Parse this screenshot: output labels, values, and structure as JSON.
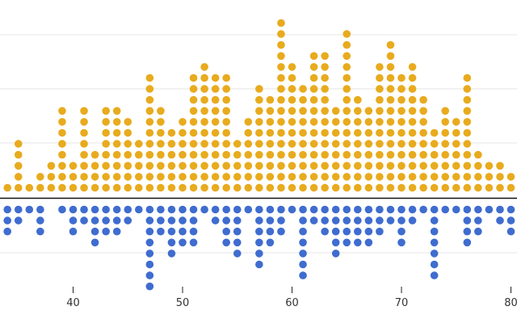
{
  "chart_data": {
    "type": "dot-plot",
    "x": [
      34,
      35,
      36,
      37,
      38,
      39,
      40,
      41,
      42,
      43,
      44,
      45,
      46,
      47,
      48,
      49,
      50,
      51,
      52,
      53,
      54,
      55,
      56,
      57,
      58,
      59,
      60,
      61,
      62,
      63,
      64,
      65,
      66,
      67,
      68,
      69,
      70,
      71,
      72,
      73,
      74,
      75,
      76,
      77,
      78,
      79,
      80
    ],
    "series": [
      {
        "values": [
          1,
          5,
          1,
          2,
          3,
          8,
          3,
          8,
          4,
          8,
          8,
          7,
          5,
          11,
          8,
          6,
          7,
          11,
          12,
          11,
          11,
          5,
          7,
          10,
          9,
          16,
          12,
          10,
          13,
          13,
          8,
          15,
          9,
          8,
          12,
          14,
          11,
          12,
          9,
          6,
          8,
          7,
          11,
          4,
          3,
          3,
          2
        ],
        "color": "#e8ab1e"
      },
      {
        "values": [
          3,
          2,
          1,
          3,
          0,
          1,
          3,
          2,
          4,
          3,
          3,
          2,
          1,
          8,
          3,
          5,
          4,
          4,
          1,
          2,
          4,
          5,
          1,
          6,
          4,
          3,
          1,
          7,
          2,
          3,
          5,
          4,
          4,
          4,
          3,
          2,
          4,
          2,
          1,
          7,
          1,
          1,
          4,
          3,
          1,
          2,
          3
        ],
        "color": "#3f6ccf"
      }
    ],
    "xlim": [
      32,
      81
    ],
    "xticks": [
      40,
      50,
      60,
      70,
      80
    ],
    "grid": true,
    "legend": "none"
  }
}
